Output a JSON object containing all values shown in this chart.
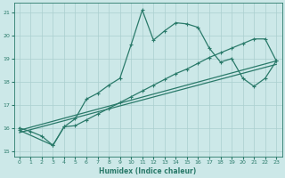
{
  "xlabel": "Humidex (Indice chaleur)",
  "xlim": [
    -0.5,
    23.5
  ],
  "ylim": [
    14.75,
    21.4
  ],
  "bg_color": "#cce8e8",
  "grid_color": "#aacfcf",
  "line_color": "#2a7a6a",
  "xticks": [
    0,
    1,
    2,
    3,
    4,
    5,
    6,
    7,
    8,
    9,
    10,
    11,
    12,
    13,
    14,
    15,
    16,
    17,
    18,
    19,
    20,
    21,
    22,
    23
  ],
  "yticks": [
    15,
    16,
    17,
    18,
    19,
    20,
    21
  ],
  "curve1": {
    "x": [
      0,
      1,
      2,
      3,
      4,
      5,
      6,
      7,
      8,
      9,
      10,
      11,
      12,
      13,
      14,
      15,
      16,
      17,
      18,
      19,
      20,
      21,
      22,
      23
    ],
    "y": [
      16.0,
      15.85,
      15.65,
      15.25,
      16.05,
      16.4,
      17.25,
      17.5,
      17.85,
      18.15,
      19.6,
      21.1,
      19.8,
      20.2,
      20.55,
      20.5,
      20.35,
      19.45,
      18.85,
      19.0,
      18.15,
      17.8,
      18.15,
      18.9
    ]
  },
  "curve2": {
    "x": [
      0,
      3,
      4,
      5,
      6,
      7,
      8,
      9,
      10,
      11,
      12,
      13,
      14,
      15,
      16,
      17,
      18,
      19,
      20,
      21,
      22,
      23
    ],
    "y": [
      15.9,
      15.25,
      16.05,
      16.1,
      16.35,
      16.6,
      16.85,
      17.1,
      17.35,
      17.6,
      17.85,
      18.1,
      18.35,
      18.55,
      18.8,
      19.05,
      19.25,
      19.45,
      19.65,
      19.85,
      19.85,
      18.9
    ]
  },
  "line1": {
    "x": [
      0,
      23
    ],
    "y": [
      15.9,
      18.9
    ]
  },
  "line2": {
    "x": [
      0,
      23
    ],
    "y": [
      15.8,
      18.75
    ]
  }
}
